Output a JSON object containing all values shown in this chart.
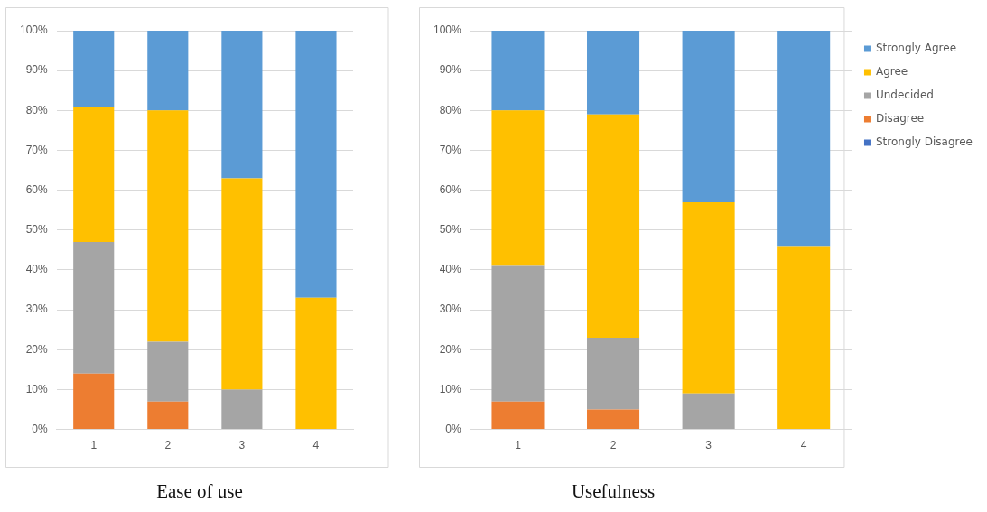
{
  "chart_data": [
    {
      "type": "bar",
      "title": "Ease of use",
      "categories": [
        "1",
        "2",
        "3",
        "4"
      ],
      "stacked": true,
      "ylim": [
        0,
        100
      ],
      "yticks": [
        {
          "value": 0,
          "label": "0%"
        },
        {
          "value": 10,
          "label": "10%"
        },
        {
          "value": 20,
          "label": "20%"
        },
        {
          "value": 30,
          "label": "30%"
        },
        {
          "value": 40,
          "label": "40%"
        },
        {
          "value": 50,
          "label": "50%"
        },
        {
          "value": 60,
          "label": "60%"
        },
        {
          "value": 70,
          "label": "70%"
        },
        {
          "value": 80,
          "label": "80%"
        },
        {
          "value": 90,
          "label": "90%"
        },
        {
          "value": 100,
          "label": "100%"
        }
      ],
      "grid": "y",
      "legend": false,
      "series": [
        {
          "color": "#4472c4",
          "values": [
            0,
            0,
            0,
            0
          ]
        },
        {
          "color": "#ed7d31",
          "values": [
            14,
            7,
            0,
            0
          ]
        },
        {
          "color": "#a5a5a5",
          "values": [
            33,
            15,
            10,
            0
          ]
        },
        {
          "color": "#ffc000",
          "values": [
            34,
            58,
            53,
            33
          ]
        },
        {
          "color": "#5b9bd5",
          "values": [
            19,
            20,
            37,
            67
          ]
        }
      ]
    },
    {
      "type": "bar",
      "title": "Usefulness",
      "categories": [
        "1",
        "2",
        "3",
        "4"
      ],
      "stacked": true,
      "ylim": [
        0,
        100
      ],
      "yticks": [
        {
          "value": 0,
          "label": "0%"
        },
        {
          "value": 10,
          "label": "10%"
        },
        {
          "value": 20,
          "label": "20%"
        },
        {
          "value": 30,
          "label": "30%"
        },
        {
          "value": 40,
          "label": "40%"
        },
        {
          "value": 50,
          "label": "50%"
        },
        {
          "value": 60,
          "label": "60%"
        },
        {
          "value": 70,
          "label": "70%"
        },
        {
          "value": 80,
          "label": "80%"
        },
        {
          "value": 90,
          "label": "90%"
        },
        {
          "value": 100,
          "label": "100%"
        }
      ],
      "grid": "y",
      "legend": "right",
      "series": [
        {
          "name": "Strongly Disagree",
          "color": "#4472c4",
          "values": [
            0,
            0,
            0,
            0
          ]
        },
        {
          "name": "Disagree",
          "color": "#ed7d31",
          "values": [
            7,
            5,
            0,
            0
          ]
        },
        {
          "name": "Undecided",
          "color": "#a5a5a5",
          "values": [
            34,
            18,
            9,
            0
          ]
        },
        {
          "name": "Agree",
          "color": "#ffc000",
          "values": [
            39,
            56,
            48,
            46
          ]
        },
        {
          "name": "Strongly Agree",
          "color": "#5b9bd5",
          "values": [
            20,
            21,
            43,
            54
          ]
        }
      ]
    }
  ]
}
